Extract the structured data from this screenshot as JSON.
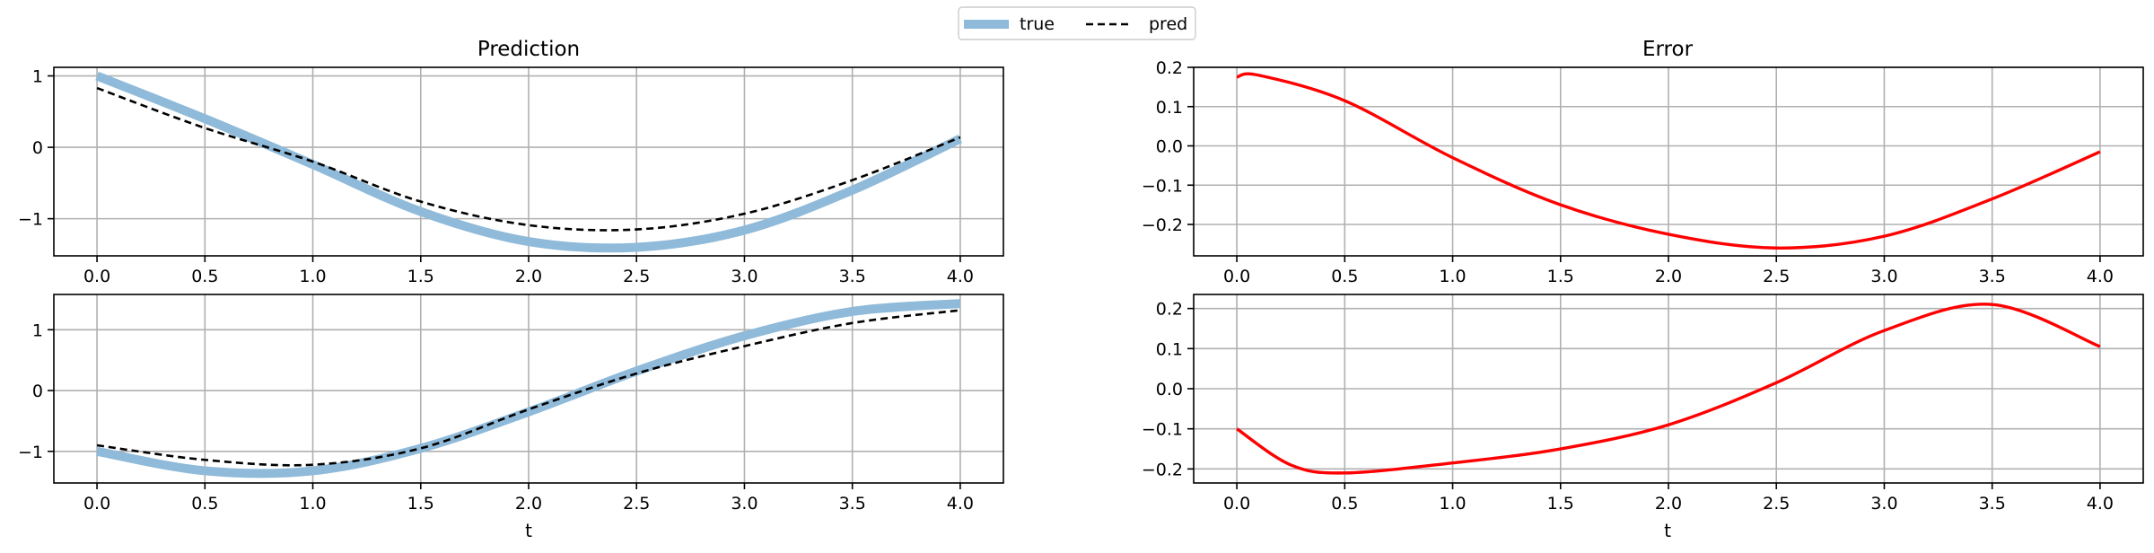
{
  "legend": {
    "entries": [
      {
        "label": "true",
        "color": "#8fbad9",
        "style": "solid-thick"
      },
      {
        "label": "pred",
        "color": "#000000",
        "style": "dashed"
      }
    ]
  },
  "titles": {
    "left": "Prediction",
    "right": "Error"
  },
  "xlabels": {
    "bottom_left": "t",
    "bottom_right": "t"
  },
  "chart_data": [
    {
      "id": "prediction_top",
      "type": "line",
      "title": "Prediction",
      "xlabel": "",
      "ylabel": "",
      "xlim": [
        -0.2,
        4.2
      ],
      "ylim": [
        -1.52,
        1.12
      ],
      "xticks": [
        0.0,
        0.5,
        1.0,
        1.5,
        2.0,
        2.5,
        3.0,
        3.5,
        4.0
      ],
      "yticks": [
        1,
        0,
        -1
      ],
      "grid": true,
      "x": [
        0.0,
        0.5,
        1.0,
        1.5,
        2.0,
        2.5,
        3.0,
        3.5,
        4.0
      ],
      "series": [
        {
          "name": "true",
          "color": "#8fbad9",
          "values": [
            1.0,
            0.4,
            -0.24,
            -0.9,
            -1.32,
            -1.4,
            -1.16,
            -0.6,
            0.12
          ]
        },
        {
          "name": "pred",
          "color": "#000000",
          "values": [
            0.83,
            0.27,
            -0.2,
            -0.76,
            -1.09,
            -1.15,
            -0.93,
            -0.46,
            0.14
          ]
        }
      ]
    },
    {
      "id": "prediction_bottom",
      "type": "line",
      "title": "",
      "xlabel": "t",
      "ylabel": "",
      "xlim": [
        -0.2,
        4.2
      ],
      "ylim": [
        -1.52,
        1.58
      ],
      "xticks": [
        0.0,
        0.5,
        1.0,
        1.5,
        2.0,
        2.5,
        3.0,
        3.5,
        4.0
      ],
      "yticks": [
        1,
        0,
        -1
      ],
      "grid": true,
      "x": [
        0.0,
        0.5,
        1.0,
        1.5,
        2.0,
        2.5,
        3.0,
        3.5,
        4.0
      ],
      "series": [
        {
          "name": "true",
          "color": "#8fbad9",
          "values": [
            -1.0,
            -1.32,
            -1.32,
            -0.95,
            -0.35,
            0.32,
            0.9,
            1.3,
            1.43
          ]
        },
        {
          "name": "pred",
          "color": "#000000",
          "values": [
            -0.9,
            -1.14,
            -1.22,
            -0.95,
            -0.31,
            0.28,
            0.73,
            1.11,
            1.32
          ]
        }
      ]
    },
    {
      "id": "error_top",
      "type": "line",
      "title": "Error",
      "xlabel": "",
      "ylabel": "",
      "xlim": [
        -0.2,
        4.2
      ],
      "ylim": [
        -0.28,
        0.2
      ],
      "xticks": [
        0.0,
        0.5,
        1.0,
        1.5,
        2.0,
        2.5,
        3.0,
        3.5,
        4.0
      ],
      "yticks": [
        0.2,
        0.1,
        0.0,
        -0.1,
        -0.2
      ],
      "ytick_labels": [
        "0.2",
        "0.1",
        "0.0",
        "−0.1",
        "−0.2"
      ],
      "grid": true,
      "x": [
        0.0,
        0.1,
        0.5,
        1.0,
        1.5,
        2.0,
        2.5,
        3.0,
        3.5,
        4.0
      ],
      "series": [
        {
          "name": "error",
          "color": "#ff0000",
          "values": [
            0.175,
            0.18,
            0.115,
            -0.03,
            -0.15,
            -0.225,
            -0.26,
            -0.23,
            -0.135,
            -0.015
          ]
        }
      ]
    },
    {
      "id": "error_bottom",
      "type": "line",
      "title": "",
      "xlabel": "t",
      "ylabel": "",
      "xlim": [
        -0.2,
        4.2
      ],
      "ylim": [
        -0.235,
        0.235
      ],
      "xticks": [
        0.0,
        0.5,
        1.0,
        1.5,
        2.0,
        2.5,
        3.0,
        3.5,
        4.0
      ],
      "yticks": [
        0.2,
        0.1,
        0.0,
        -0.1,
        -0.2
      ],
      "ytick_labels": [
        "0.2",
        "0.1",
        "0.0",
        "−0.1",
        "−0.2"
      ],
      "grid": true,
      "x": [
        0.0,
        0.25,
        0.5,
        1.0,
        1.5,
        2.0,
        2.5,
        3.0,
        3.5,
        4.0
      ],
      "series": [
        {
          "name": "error",
          "color": "#ff0000",
          "values": [
            -0.1,
            -0.19,
            -0.21,
            -0.185,
            -0.15,
            -0.09,
            0.015,
            0.145,
            0.21,
            0.105
          ]
        }
      ]
    }
  ]
}
